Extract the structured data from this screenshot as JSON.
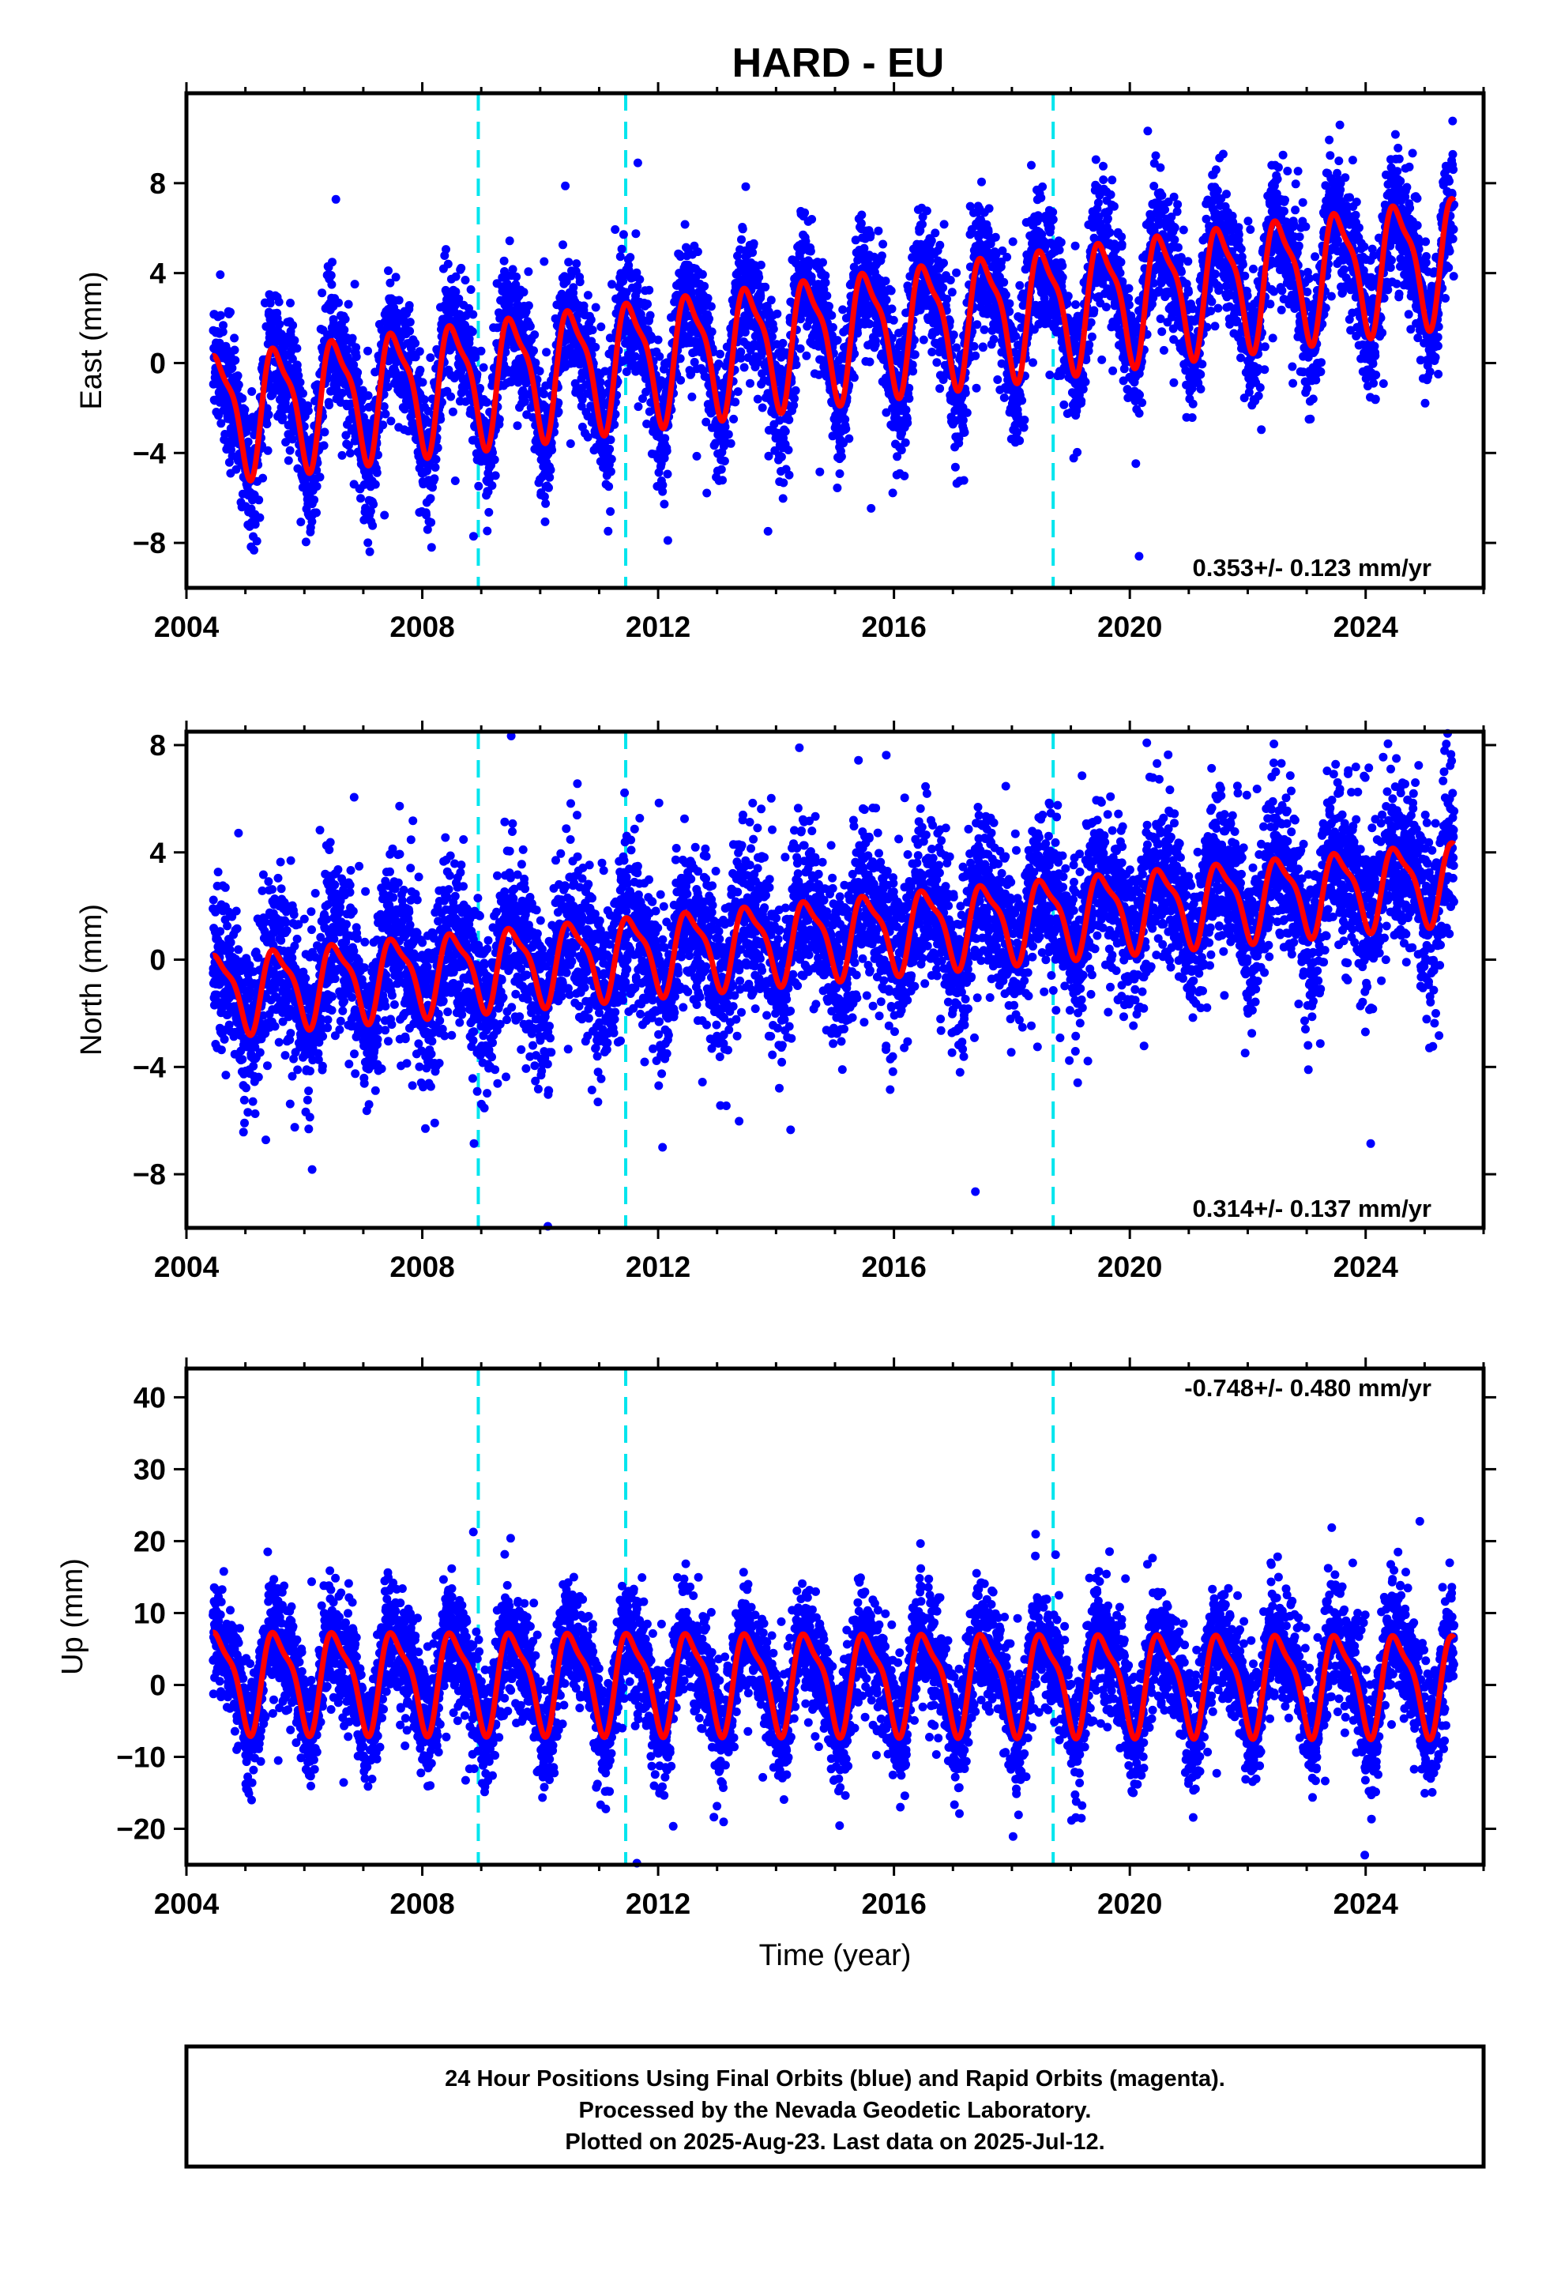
{
  "figure": {
    "title": "HARD - EU",
    "xlabel": "Time (year)",
    "footer": [
      "24 Hour Positions Using Final Orbits (blue) and Rapid Orbits (magenta).",
      "Processed by the Nevada Geodetic Laboratory.",
      "Plotted on 2025-Aug-23. Last data on 2025-Jul-12."
    ],
    "colors": {
      "data": "#0000ff",
      "model": "#ff0000",
      "events": "#00e5ee",
      "frame": "#000000"
    }
  },
  "chart_data": [
    {
      "type": "scatter",
      "ylabel": "East (mm)",
      "xlim": [
        2004,
        2026
      ],
      "ylim": [
        -10,
        12
      ],
      "xticks": [
        2004,
        2008,
        2012,
        2016,
        2020,
        2024
      ],
      "xtick_labels": [
        "2004",
        "2008",
        "2012",
        "2016",
        "2020",
        "2024"
      ],
      "yticks": [
        -8,
        -4,
        0,
        4,
        8
      ],
      "ytick_labels": [
        "−8",
        "−4",
        "0",
        "4",
        "8"
      ],
      "rate_label": "0.353+/- 0.123 mm/yr",
      "event_lines": [
        2008.95,
        2011.45,
        2018.7
      ],
      "series": [
        {
          "kind": "points",
          "x_start": 2004.45,
          "x_end": 2025.5,
          "trend": [
            -2.2,
            4.8
          ],
          "amplitude": 2.6,
          "scatter_sd": 1.4
        },
        {
          "kind": "model",
          "x_start": 2004.45,
          "x_end": 2025.5,
          "trend": [
            -2.2,
            4.8
          ],
          "amplitude": 2.6,
          "offsets": [
            {
              "x": 2008.95,
              "dy": 0.4
            },
            {
              "x": 2018.7,
              "dy": 0.3
            }
          ]
        }
      ]
    },
    {
      "type": "scatter",
      "ylabel": "North (mm)",
      "xlim": [
        2004,
        2026
      ],
      "ylim": [
        -10,
        8.5
      ],
      "xticks": [
        2004,
        2008,
        2012,
        2016,
        2020,
        2024
      ],
      "xtick_labels": [
        "2004",
        "2008",
        "2012",
        "2016",
        "2020",
        "2024"
      ],
      "yticks": [
        -8,
        -4,
        0,
        4,
        8
      ],
      "ytick_labels": [
        "−8",
        "−4",
        "0",
        "4",
        "8"
      ],
      "rate_label": "0.314+/- 0.137 mm/yr",
      "event_lines": [
        2008.95,
        2011.45,
        2018.7
      ],
      "series": [
        {
          "kind": "points",
          "x_start": 2004.45,
          "x_end": 2025.5,
          "trend": [
            -1.2,
            3.0
          ],
          "amplitude": 1.4,
          "scatter_sd": 1.5
        },
        {
          "kind": "model",
          "x_start": 2004.45,
          "x_end": 2025.5,
          "trend": [
            -1.2,
            3.0
          ],
          "amplitude": 1.4,
          "offsets": [
            {
              "x": 2008.95,
              "dy": -2.0
            },
            {
              "x": 2018.7,
              "dy": 0.4
            }
          ]
        }
      ]
    },
    {
      "type": "scatter",
      "ylabel": "Up (mm)",
      "xlim": [
        2004,
        2026
      ],
      "ylim": [
        -25,
        44
      ],
      "xticks": [
        2004,
        2008,
        2012,
        2016,
        2020,
        2024
      ],
      "xtick_labels": [
        "2004",
        "2008",
        "2012",
        "2016",
        "2020",
        "2024"
      ],
      "yticks": [
        -20,
        -10,
        0,
        10,
        20,
        30,
        40
      ],
      "ytick_labels": [
        "−20",
        "−10",
        "0",
        "10",
        "20",
        "30",
        "40"
      ],
      "rate_label": "-0.748+/- 0.480 mm/yr",
      "event_lines": [
        2008.95,
        2011.45,
        2018.7
      ],
      "series": [
        {
          "kind": "points",
          "x_start": 2004.45,
          "x_end": 2025.5,
          "trend": [
            1.0,
            0.5
          ],
          "amplitude": 6.5,
          "scatter_sd": 4.0
        },
        {
          "kind": "model",
          "x_start": 2004.45,
          "x_end": 2025.5,
          "trend": [
            1.0,
            0.5
          ],
          "amplitude": 6.5,
          "offsets": [
            {
              "x": 2008.95,
              "dy": 2.0
            },
            {
              "x": 2018.7,
              "dy": 2.0
            }
          ]
        }
      ]
    }
  ]
}
